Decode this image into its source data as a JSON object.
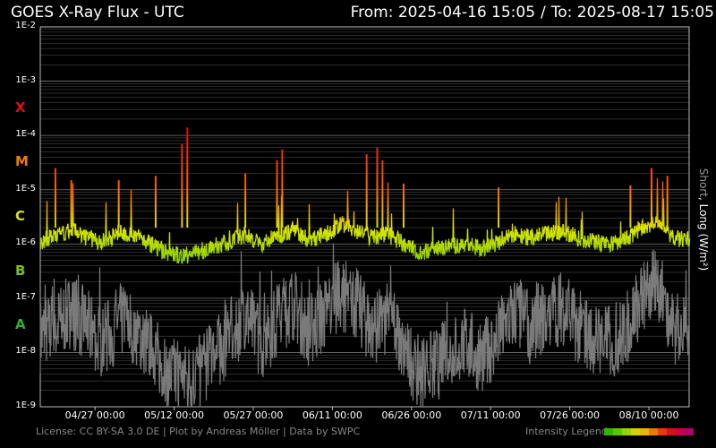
{
  "header": {
    "title": "GOES X-Ray Flux - UTC",
    "from_label": "From: 2025-04-16 15:05",
    "separator": "/",
    "to_label": "To: 2025-08-17 15:05"
  },
  "footer": {
    "credits": "License: CC BY-SA 3.0 DE | Plot by Andreas Möller | Data by SWPC",
    "legend_label": "Intensity Legend"
  },
  "colors": {
    "background": "#000000",
    "grid": "#7a7a7a",
    "short_channel": "#7a7a7a",
    "long_low": "#8ccf00",
    "long_mid": "#d9e600",
    "long_high": "#ff6a00",
    "long_peak": "#e01010",
    "class_X": "#e01010",
    "class_M": "#f07a10",
    "class_C": "#dcdc20",
    "class_B": "#7ac020",
    "class_A": "#30b030"
  },
  "intensity_legend": [
    "#32b400",
    "#5ac800",
    "#96d200",
    "#d2d200",
    "#f0b400",
    "#f07800",
    "#e63c00",
    "#d21414",
    "#c80050",
    "#b4006e"
  ],
  "chart_data": {
    "type": "line",
    "title": "GOES X-Ray Flux - UTC",
    "ylabel": "Short, Long (W/m²)",
    "ylabel_parts": {
      "short": "Short",
      "sep": ", ",
      "long": "Long (W/m²)"
    },
    "y_scale": "log",
    "ylim": [
      1e-09,
      0.01
    ],
    "y_tick_labels": [
      "1E-2",
      "1E-3",
      "1E-4",
      "1E-5",
      "1E-6",
      "1E-7",
      "1E-8",
      "1E-9"
    ],
    "y_tick_values": [
      0.01,
      0.001,
      0.0001,
      1e-05,
      1e-06,
      1e-07,
      1e-08,
      1e-09
    ],
    "flare_classes": [
      {
        "label": "X",
        "flux": 0.0001,
        "color": "#e01010"
      },
      {
        "label": "M",
        "flux": 1e-05,
        "color": "#f07a10"
      },
      {
        "label": "C",
        "flux": 1e-06,
        "color": "#dcdc20"
      },
      {
        "label": "B",
        "flux": 1e-07,
        "color": "#7ac020"
      },
      {
        "label": "A",
        "flux": 1e-08,
        "color": "#30b030"
      }
    ],
    "xlim": [
      "2025-04-16 15:05",
      "2025-08-17 15:05"
    ],
    "x_tick_labels": [
      "04/27 00:00",
      "05/12 00:00",
      "05/27 00:00",
      "06/11 00:00",
      "06/26 00:00",
      "07/11 00:00",
      "07/26 00:00",
      "08/10 00:00"
    ],
    "x_tick_dates": [
      "2025-04-27 00:00",
      "2025-05-12 00:00",
      "2025-05-27 00:00",
      "2025-06-11 00:00",
      "2025-06-26 00:00",
      "2025-07-11 00:00",
      "2025-07-26 00:00",
      "2025-08-10 00:00"
    ],
    "grid": true,
    "series": [
      {
        "name": "Long",
        "x": [
          "2025-04-16",
          "2025-04-19",
          "2025-04-22",
          "2025-04-25",
          "2025-04-28",
          "2025-05-01",
          "2025-05-04",
          "2025-05-07",
          "2025-05-10",
          "2025-05-13",
          "2025-05-16",
          "2025-05-19",
          "2025-05-22",
          "2025-05-25",
          "2025-05-28",
          "2025-05-31",
          "2025-06-03",
          "2025-06-06",
          "2025-06-09",
          "2025-06-12",
          "2025-06-15",
          "2025-06-18",
          "2025-06-21",
          "2025-06-24",
          "2025-06-27",
          "2025-06-30",
          "2025-07-03",
          "2025-07-06",
          "2025-07-09",
          "2025-07-12",
          "2025-07-15",
          "2025-07-18",
          "2025-07-21",
          "2025-07-24",
          "2025-07-27",
          "2025-07-30",
          "2025-08-02",
          "2025-08-05",
          "2025-08-08",
          "2025-08-11",
          "2025-08-14",
          "2025-08-17"
        ],
        "values": [
          1.1e-06,
          1.4e-06,
          1.8e-06,
          1.3e-06,
          1.1e-06,
          1.6e-06,
          1.5e-06,
          1e-06,
          7e-07,
          6e-07,
          7e-07,
          9e-07,
          1.1e-06,
          1.5e-06,
          1e-06,
          1.4e-06,
          1.8e-06,
          1.2e-06,
          1.5e-06,
          2.2e-06,
          1.8e-06,
          1.3e-06,
          1.5e-06,
          1e-06,
          7e-07,
          8e-07,
          9e-07,
          1e-06,
          8e-07,
          1.1e-06,
          1.6e-06,
          1.3e-06,
          1.5e-06,
          1.7e-06,
          1.3e-06,
          1.1e-06,
          1e-06,
          1.2e-06,
          2e-06,
          2.6e-06,
          1.3e-06,
          1.1e-06
        ]
      },
      {
        "name": "Short",
        "x": [
          "2025-04-16",
          "2025-04-19",
          "2025-04-22",
          "2025-04-25",
          "2025-04-28",
          "2025-05-01",
          "2025-05-04",
          "2025-05-07",
          "2025-05-10",
          "2025-05-13",
          "2025-05-16",
          "2025-05-19",
          "2025-05-22",
          "2025-05-25",
          "2025-05-28",
          "2025-05-31",
          "2025-06-03",
          "2025-06-06",
          "2025-06-09",
          "2025-06-12",
          "2025-06-15",
          "2025-06-18",
          "2025-06-21",
          "2025-06-24",
          "2025-06-27",
          "2025-06-30",
          "2025-07-03",
          "2025-07-06",
          "2025-07-09",
          "2025-07-12",
          "2025-07-15",
          "2025-07-18",
          "2025-07-21",
          "2025-07-24",
          "2025-07-27",
          "2025-07-30",
          "2025-08-02",
          "2025-08-05",
          "2025-08-08",
          "2025-08-11",
          "2025-08-14",
          "2025-08-17"
        ],
        "values": [
          2e-08,
          3e-08,
          6e-08,
          3e-08,
          1.5e-08,
          4e-08,
          3e-08,
          1.2e-08,
          5e-09,
          3e-09,
          4e-09,
          8e-09,
          2e-08,
          5e-08,
          1.5e-08,
          4e-08,
          8e-08,
          2.5e-08,
          5e-08,
          1.3e-07,
          8e-08,
          2.5e-08,
          4e-08,
          1.2e-08,
          4e-09,
          6e-09,
          1e-08,
          1.5e-08,
          8e-09,
          2e-08,
          6e-08,
          3e-08,
          5e-08,
          7e-08,
          3e-08,
          2e-08,
          1.5e-08,
          2.5e-08,
          1e-07,
          2e-07,
          3e-08,
          2e-08
        ]
      }
    ],
    "peaks": [
      {
        "x": "2025-04-19",
        "value": 2.5e-05
      },
      {
        "x": "2025-04-22",
        "value": 1.5e-05
      },
      {
        "x": "2025-05-01",
        "value": 1.5e-05
      },
      {
        "x": "2025-05-08",
        "value": 1.8e-05
      },
      {
        "x": "2025-05-13",
        "value": 7e-05
      },
      {
        "x": "2025-05-14",
        "value": 0.00014
      },
      {
        "x": "2025-05-25",
        "value": 2e-05
      },
      {
        "x": "2025-05-31",
        "value": 3.5e-05
      },
      {
        "x": "2025-06-01",
        "value": 5.5e-05
      },
      {
        "x": "2025-06-17",
        "value": 4.5e-05
      },
      {
        "x": "2025-06-19",
        "value": 6e-05
      },
      {
        "x": "2025-06-20",
        "value": 3.5e-05
      },
      {
        "x": "2025-06-24",
        "value": 1.3e-05
      },
      {
        "x": "2025-07-12",
        "value": 1.1e-05
      },
      {
        "x": "2025-08-06",
        "value": 1.2e-05
      },
      {
        "x": "2025-08-10",
        "value": 2.5e-05
      },
      {
        "x": "2025-08-13",
        "value": 1.8e-05
      }
    ]
  }
}
